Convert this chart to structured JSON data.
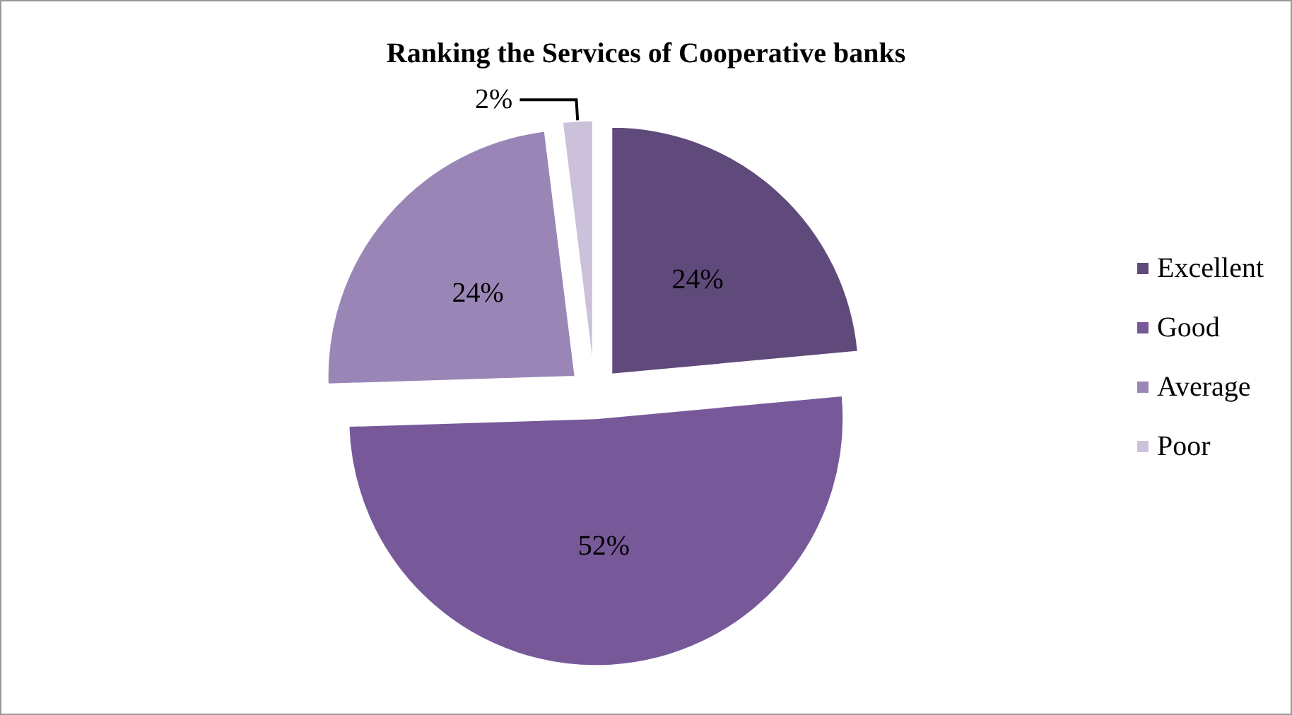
{
  "chart_data": {
    "type": "pie",
    "title": "Ranking the Services of Cooperative banks",
    "categories": [
      "Excellent",
      "Good",
      "Average",
      "Poor"
    ],
    "values": [
      24,
      52,
      24,
      2
    ],
    "colors": [
      "#604a7b",
      "#77599a",
      "#9a86b6",
      "#ccc1da"
    ],
    "value_labels": [
      "24%",
      "52%",
      "24%",
      "2%"
    ],
    "legend": "right"
  }
}
